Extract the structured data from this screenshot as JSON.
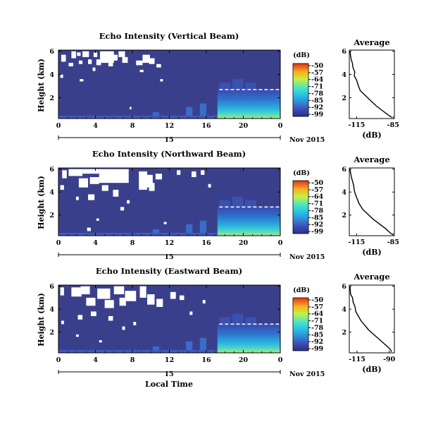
{
  "chart_data": [
    {
      "type": "heatmap",
      "title": "Echo Intensity (Vertical Beam)",
      "ylabel": "Height (km)",
      "x_ticks": [
        "0",
        "4",
        "8",
        "12",
        "16",
        "20",
        "0"
      ],
      "xlim": [
        0,
        24
      ],
      "y_ticks": [
        "2",
        "4",
        "6"
      ],
      "ylim": [
        0.2,
        6.1
      ],
      "date_day": "15",
      "date_label": "Nov 2015",
      "colorbar": {
        "unit": "(dB)",
        "ticks": [
          "-50",
          "-57",
          "-64",
          "-71",
          "-78",
          "-85",
          "-92",
          "-99"
        ]
      },
      "layer_top_km": 2.7,
      "weak_echo_start_h": 17.2,
      "gaps": [
        [
          0.3,
          5.7,
          0.8,
          5.1
        ],
        [
          1.4,
          6.0,
          1.9,
          5.4
        ],
        [
          2.0,
          5.9,
          2.4,
          5.6
        ],
        [
          2.2,
          5.2,
          2.6,
          4.9
        ],
        [
          2.6,
          6.0,
          3.3,
          5.5
        ],
        [
          3.2,
          5.3,
          3.6,
          4.9
        ],
        [
          3.8,
          5.9,
          4.2,
          5.5
        ],
        [
          4.1,
          5.3,
          4.6,
          4.8
        ],
        [
          4.5,
          6.0,
          6.0,
          5.0
        ],
        [
          5.9,
          5.7,
          6.4,
          5.2
        ],
        [
          6.5,
          6.0,
          7.2,
          5.5
        ],
        [
          6.9,
          5.5,
          7.5,
          5.0
        ],
        [
          8.4,
          5.2,
          9.1,
          4.8
        ],
        [
          9.1,
          5.7,
          9.9,
          5.0
        ],
        [
          9.8,
          5.4,
          10.4,
          4.9
        ],
        [
          10.6,
          4.9,
          11.1,
          4.6
        ],
        [
          1.1,
          5.0,
          1.6,
          4.7
        ],
        [
          5.4,
          5.0,
          5.9,
          4.7
        ],
        [
          0.2,
          4.0,
          0.5,
          3.7
        ],
        [
          2.3,
          3.6,
          2.7,
          3.4
        ],
        [
          3.7,
          4.6,
          4.0,
          4.3
        ],
        [
          8.8,
          4.4,
          9.2,
          4.2
        ],
        [
          11.0,
          3.6,
          11.3,
          3.4
        ],
        [
          7.7,
          1.2,
          7.9,
          1.0
        ]
      ],
      "mean_profile": {
        "title": "Average",
        "xlabel": "(dB)",
        "x_ticks": [
          "-115",
          "-85"
        ],
        "xlim": [
          -121,
          -84
        ],
        "x_tick_values": [
          -115,
          -85
        ],
        "y_ticks": [
          "2",
          "4",
          "6"
        ],
        "ylim": [
          0.2,
          6.1
        ],
        "points": [
          [
            -120.5,
            6.0
          ],
          [
            -119.5,
            5.3
          ],
          [
            -118.5,
            5.0
          ],
          [
            -118,
            4.6
          ],
          [
            -116.5,
            4.2
          ],
          [
            -117,
            3.9
          ],
          [
            -115,
            3.5
          ],
          [
            -113.5,
            3.0
          ],
          [
            -112,
            2.6
          ],
          [
            -108,
            2.2
          ],
          [
            -104,
            1.8
          ],
          [
            -99,
            1.3
          ],
          [
            -94,
            0.9
          ],
          [
            -89,
            0.5
          ],
          [
            -86,
            0.3
          ]
        ]
      }
    },
    {
      "type": "heatmap",
      "title": "Echo Intensity (Northward Beam)",
      "ylabel": "Height (km)",
      "x_ticks": [
        "0",
        "4",
        "8",
        "12",
        "16",
        "20",
        "0"
      ],
      "xlim": [
        0,
        24
      ],
      "y_ticks": [
        "2",
        "4",
        "6"
      ],
      "ylim": [
        0.2,
        6.1
      ],
      "date_day": "15",
      "date_label": "Nov 2015",
      "colorbar": {
        "unit": "(dB)",
        "ticks": [
          "-50",
          "-57",
          "-64",
          "-71",
          "-78",
          "-85",
          "-92",
          "-99"
        ]
      },
      "layer_top_km": 2.7,
      "weak_echo_start_h": 17.2,
      "gaps": [
        [
          0.4,
          5.9,
          0.9,
          5.2
        ],
        [
          0.2,
          4.6,
          0.6,
          4.2
        ],
        [
          1.1,
          6.0,
          2.6,
          5.4
        ],
        [
          2.2,
          5.2,
          3.2,
          4.4
        ],
        [
          2.6,
          6.0,
          4.4,
          5.6
        ],
        [
          3.4,
          5.3,
          4.4,
          4.7
        ],
        [
          4.4,
          6.0,
          7.6,
          4.8
        ],
        [
          4.7,
          4.6,
          5.4,
          4.1
        ],
        [
          3.2,
          3.8,
          3.9,
          3.3
        ],
        [
          5.9,
          4.2,
          6.5,
          3.6
        ],
        [
          8.7,
          5.8,
          9.6,
          4.2
        ],
        [
          9.4,
          5.5,
          10.2,
          4.4
        ],
        [
          9.8,
          4.8,
          10.4,
          4.1
        ],
        [
          10.5,
          5.6,
          11.2,
          5.1
        ],
        [
          12.8,
          5.9,
          13.2,
          5.5
        ],
        [
          14.4,
          5.8,
          14.9,
          5.3
        ],
        [
          15.4,
          5.9,
          15.8,
          5.5
        ],
        [
          16.2,
          4.7,
          16.5,
          4.4
        ],
        [
          1.9,
          3.6,
          2.2,
          3.3
        ],
        [
          6.7,
          2.7,
          7.1,
          2.4
        ],
        [
          4.1,
          1.7,
          4.4,
          1.5
        ],
        [
          3.1,
          0.9,
          3.5,
          0.6
        ],
        [
          7.4,
          3.3,
          7.7,
          3.0
        ],
        [
          11.4,
          1.4,
          11.7,
          1.2
        ]
      ],
      "mean_profile": {
        "title": "Average",
        "xlabel": "(dB)",
        "x_ticks": [
          "-115",
          "-85"
        ],
        "xlim": [
          -121,
          -84
        ],
        "x_tick_values": [
          -115,
          -85
        ],
        "y_ticks": [
          "2",
          "4",
          "6"
        ],
        "ylim": [
          0.2,
          6.1
        ],
        "points": [
          [
            -120.5,
            6.0
          ],
          [
            -119.5,
            5.4
          ],
          [
            -118.5,
            5.0
          ],
          [
            -117.5,
            4.6
          ],
          [
            -117,
            4.2
          ],
          [
            -116,
            3.8
          ],
          [
            -114.5,
            3.4
          ],
          [
            -113,
            3.0
          ],
          [
            -110,
            2.5
          ],
          [
            -106,
            2.1
          ],
          [
            -101,
            1.6
          ],
          [
            -96,
            1.2
          ],
          [
            -91,
            0.8
          ],
          [
            -87,
            0.4
          ],
          [
            -85,
            0.3
          ]
        ]
      }
    },
    {
      "type": "heatmap",
      "title": "Echo Intensity (Eastward Beam)",
      "ylabel": "Height (km)",
      "x_ticks": [
        "0",
        "4",
        "8",
        "12",
        "16",
        "20",
        "0"
      ],
      "xlim": [
        0,
        24
      ],
      "y_ticks": [
        "2",
        "4",
        "6"
      ],
      "ylim": [
        0.2,
        6.1
      ],
      "date_day": "15",
      "date_label": "Nov 2015",
      "xlabel": "Local Time",
      "colorbar": {
        "unit": "(dB)",
        "ticks": [
          "-50",
          "-57",
          "-64",
          "-71",
          "-78",
          "-85",
          "-92",
          "-99"
        ]
      },
      "layer_top_km": 2.7,
      "weak_echo_start_h": 17.2,
      "gaps": [
        [
          0.2,
          5.9,
          0.6,
          5.2
        ],
        [
          1.4,
          5.9,
          2.5,
          5.1
        ],
        [
          2.4,
          6.0,
          3.4,
          5.3
        ],
        [
          3.0,
          5.0,
          4.0,
          4.3
        ],
        [
          4.2,
          5.8,
          5.6,
          4.9
        ],
        [
          5.0,
          4.8,
          6.0,
          4.1
        ],
        [
          6.0,
          6.0,
          7.1,
          5.3
        ],
        [
          6.6,
          5.0,
          7.3,
          4.3
        ],
        [
          7.2,
          5.6,
          8.4,
          4.7
        ],
        [
          8.8,
          6.0,
          9.5,
          5.0
        ],
        [
          9.6,
          5.3,
          10.4,
          4.4
        ],
        [
          10.6,
          4.9,
          11.3,
          4.2
        ],
        [
          12.1,
          5.5,
          12.7,
          4.9
        ],
        [
          13.1,
          5.2,
          13.6,
          4.8
        ],
        [
          2.1,
          3.5,
          2.6,
          3.1
        ],
        [
          3.5,
          3.8,
          4.1,
          3.4
        ],
        [
          5.4,
          3.4,
          5.9,
          3.0
        ],
        [
          0.3,
          3.0,
          0.6,
          2.7
        ],
        [
          8.1,
          2.9,
          8.4,
          2.6
        ],
        [
          6.9,
          2.5,
          7.2,
          2.2
        ],
        [
          1.9,
          1.8,
          2.2,
          1.6
        ],
        [
          4.4,
          1.3,
          4.7,
          1.1
        ],
        [
          14.2,
          3.8,
          14.5,
          3.5
        ],
        [
          15.6,
          4.8,
          15.9,
          4.5
        ]
      ],
      "mean_profile": {
        "title": "Average",
        "xlabel": "(dB)",
        "x_ticks": [
          "-115",
          "-90"
        ],
        "xlim": [
          -121,
          -86
        ],
        "x_tick_values": [
          -115,
          -90
        ],
        "y_ticks": [
          "2",
          "4",
          "6"
        ],
        "ylim": [
          0.2,
          6.1
        ],
        "points": [
          [
            -120.5,
            6.0
          ],
          [
            -120,
            5.3
          ],
          [
            -118.5,
            5.0
          ],
          [
            -118,
            4.6
          ],
          [
            -116.5,
            4.2
          ],
          [
            -116,
            3.8
          ],
          [
            -114,
            3.4
          ],
          [
            -112,
            3.0
          ],
          [
            -109,
            2.6
          ],
          [
            -106,
            2.2
          ],
          [
            -102,
            1.8
          ],
          [
            -98,
            1.4
          ],
          [
            -94,
            1.0
          ],
          [
            -90,
            0.6
          ],
          [
            -88,
            0.3
          ]
        ]
      }
    }
  ]
}
